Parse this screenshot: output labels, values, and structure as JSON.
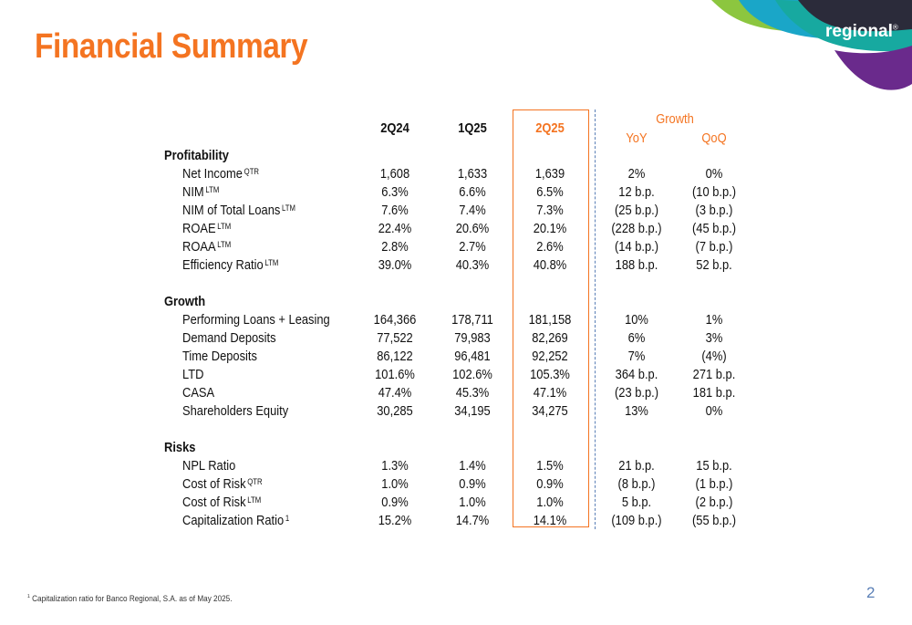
{
  "title": "Financial Summary",
  "logo": {
    "text": "regional",
    "mark": "®"
  },
  "headers": {
    "c1": "2Q24",
    "c2": "1Q25",
    "c3": "2Q25",
    "growth": "Growth",
    "yoy": "YoY",
    "qoq": "QoQ"
  },
  "sections": [
    {
      "name": "Profitability",
      "rows": [
        {
          "label": "Net Income",
          "sup": "QTR",
          "values": [
            "1,608",
            "1,633",
            "1,639",
            "2%",
            "0%"
          ]
        },
        {
          "label": "NIM",
          "sup": "LTM",
          "values": [
            "6.3%",
            "6.6%",
            "6.5%",
            "12 b.p.",
            "(10 b.p.)"
          ]
        },
        {
          "label": "NIM of Total Loans",
          "sup": "LTM",
          "values": [
            "7.6%",
            "7.4%",
            "7.3%",
            "(25 b.p.)",
            "(3 b.p.)"
          ]
        },
        {
          "label": "ROAE",
          "sup": "LTM",
          "values": [
            "22.4%",
            "20.6%",
            "20.1%",
            "(228 b.p.)",
            "(45 b.p.)"
          ]
        },
        {
          "label": "ROAA",
          "sup": "LTM",
          "values": [
            "2.8%",
            "2.7%",
            "2.6%",
            "(14 b.p.)",
            "(7 b.p.)"
          ]
        },
        {
          "label": "Efficiency Ratio",
          "sup": "LTM",
          "values": [
            "39.0%",
            "40.3%",
            "40.8%",
            "188 b.p.",
            "52 b.p."
          ]
        }
      ]
    },
    {
      "name": "Growth",
      "rows": [
        {
          "label": "Performing Loans + Leasing",
          "sup": "",
          "values": [
            "164,366",
            "178,711",
            "181,158",
            "10%",
            "1%"
          ]
        },
        {
          "label": "Demand Deposits",
          "sup": "",
          "values": [
            "77,522",
            "79,983",
            "82,269",
            "6%",
            "3%"
          ]
        },
        {
          "label": "Time Deposits",
          "sup": "",
          "values": [
            "86,122",
            "96,481",
            "92,252",
            "7%",
            "(4%)"
          ]
        },
        {
          "label": "LTD",
          "sup": "",
          "values": [
            "101.6%",
            "102.6%",
            "105.3%",
            "364 b.p.",
            "271 b.p."
          ]
        },
        {
          "label": "CASA",
          "sup": "",
          "values": [
            "47.4%",
            "45.3%",
            "47.1%",
            "(23 b.p.)",
            "181 b.p."
          ]
        },
        {
          "label": "Shareholders Equity",
          "sup": "",
          "values": [
            "30,285",
            "34,195",
            "34,275",
            "13%",
            "0%"
          ]
        }
      ]
    },
    {
      "name": "Risks",
      "rows": [
        {
          "label": "NPL Ratio",
          "sup": "",
          "values": [
            "1.3%",
            "1.4%",
            "1.5%",
            "21 b.p.",
            "15 b.p."
          ]
        },
        {
          "label": "Cost of Risk",
          "sup": "QTR",
          "values": [
            "1.0%",
            "0.9%",
            "0.9%",
            "(8 b.p.)",
            "(1 b.p.)"
          ]
        },
        {
          "label": "Cost of Risk",
          "sup": "LTM",
          "values": [
            "0.9%",
            "1.0%",
            "1.0%",
            "5 b.p.",
            "(2 b.p.)"
          ]
        },
        {
          "label": "Capitalization Ratio",
          "sup": "1",
          "values": [
            "15.2%",
            "14.7%",
            "14.1%",
            "(109 b.p.)",
            "(55 b.p.)"
          ]
        }
      ]
    }
  ],
  "footnote": {
    "sup": "1",
    "text": "Capitalization ratio for Banco Regional, S.A. as of May 2025."
  },
  "page_number": "2",
  "colors": {
    "accent": "#f47421",
    "divider": "#5a7fb6",
    "logo_purple": "#6a2a8c",
    "logo_teal": "#1aa6c8",
    "logo_green": "#8cc63f"
  }
}
